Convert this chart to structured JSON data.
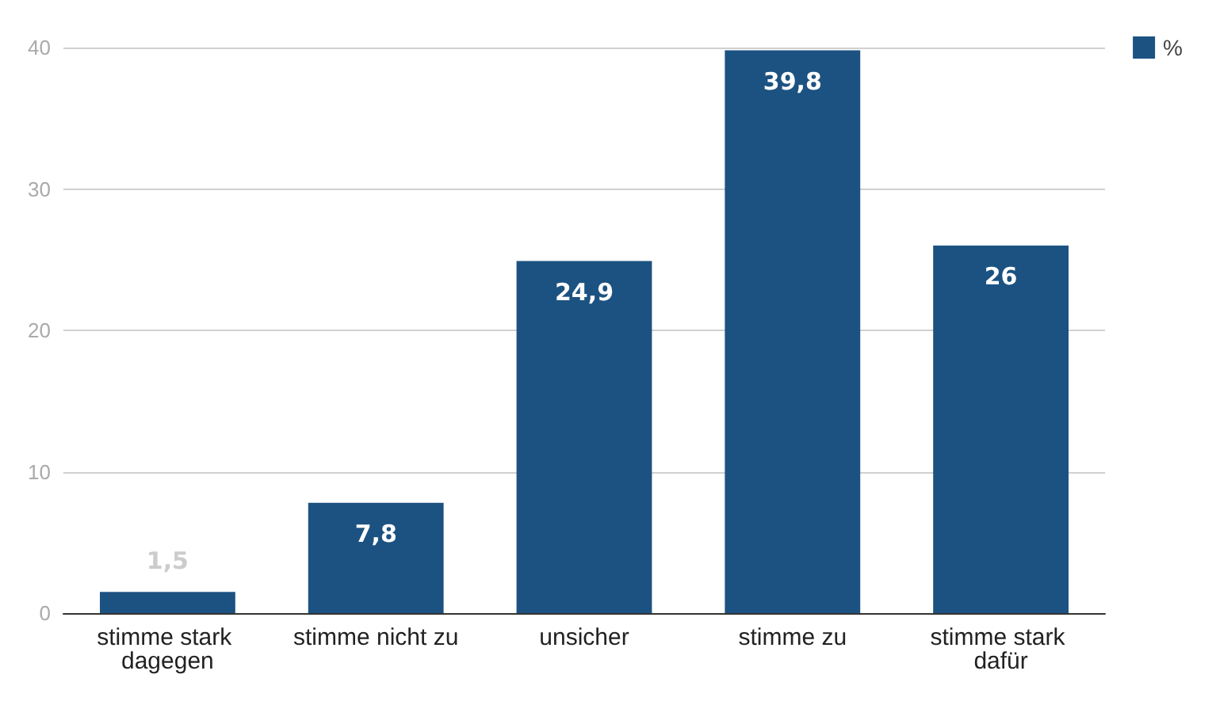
{
  "chart_data": {
    "type": "bar",
    "categories": [
      "stimme stark dagegen",
      "stimme nicht zu",
      "unsicher",
      "stimme zu",
      "stimme stark dafür"
    ],
    "series": [
      {
        "name": "%",
        "color": "#1c5281",
        "values": [
          1.5,
          7.8,
          24.9,
          39.8,
          26
        ]
      }
    ],
    "value_labels": [
      "1,5",
      "7,8",
      "24,9",
      "39,8",
      "26"
    ],
    "ylim": [
      0,
      40
    ],
    "yticks": [
      0,
      10,
      20,
      30,
      40
    ],
    "grid": "y",
    "legend": "top right"
  }
}
